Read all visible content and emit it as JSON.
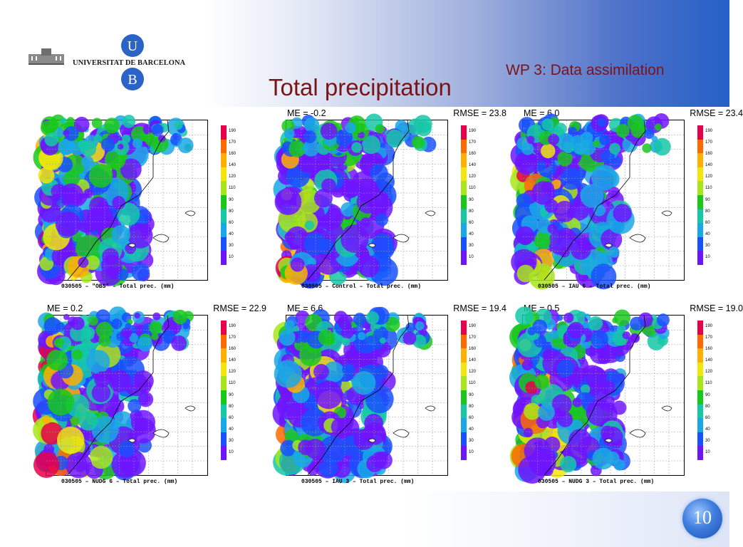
{
  "logo": {
    "institution": "UNIVERSITAT DE BARCELONA",
    "letter_top": "U",
    "letter_bottom": "B"
  },
  "header": {
    "title": "Total precipitation",
    "subtitle": "WP  3: Data assimilation"
  },
  "colors": {
    "title": "#7a1418",
    "colorbar": [
      "#e8004b",
      "#ff6a00",
      "#ffb000",
      "#f2e60a",
      "#a8e61b",
      "#19c81b",
      "#14c8a8",
      "#19a8e6",
      "#1950ff",
      "#6e14ff"
    ]
  },
  "colorbar_labels": [
    "190",
    "170",
    "160",
    "140",
    "120",
    "110",
    "90",
    "80",
    "60",
    "40",
    "30",
    "10"
  ],
  "panels": [
    {
      "me": "",
      "rmse": "",
      "caption": "030505 – \"OBS\" – Total prec. (mm)"
    },
    {
      "me": "ME = -0.2",
      "rmse": "RMSE = 23.8",
      "caption": "030505 – Control – Total prec. (mm)"
    },
    {
      "me": "ME = 6.0",
      "rmse": "RMSE = 23.4",
      "caption": "030505 – IAU 6 – Total prec. (mm)"
    },
    {
      "me": "ME = 0.2",
      "rmse": "RMSE = 22.9",
      "caption": "030505 – NUDG 6 – Total prec. (mm)"
    },
    {
      "me": "ME = 6.6",
      "rmse": "RMSE = 19.4",
      "caption": "030505 – IAU 3 – Total prec. (mm)"
    },
    {
      "me": "ME = 0.5",
      "rmse": "RMSE = 19.0",
      "caption": "030505 – NUDG 3 – Total prec. (mm)"
    }
  ],
  "page_number": "10"
}
